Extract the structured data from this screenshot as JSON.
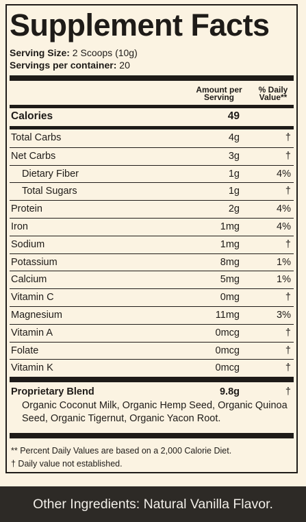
{
  "title": "Supplement Facts",
  "serving": {
    "size_label": "Serving Size:",
    "size_value": " 2 Scoops (10g)",
    "per_label": "Servings per container:",
    "per_value": " 20"
  },
  "headers": {
    "amount_line1": "Amount per",
    "amount_line2": "Serving",
    "dv_line1": "% Daily",
    "dv_line2": "Value**"
  },
  "calories": {
    "name": "Calories",
    "amount": "49"
  },
  "nutrients": [
    {
      "name": "Total Carbs",
      "amount": "4g",
      "dv": "†"
    },
    {
      "name": "Net Carbs",
      "amount": "3g",
      "dv": "†"
    },
    {
      "name": "Dietary Fiber",
      "amount": "1g",
      "dv": "4%"
    },
    {
      "name": "Total Sugars",
      "amount": "1g",
      "dv": "†"
    },
    {
      "name": "Protein",
      "amount": "2g",
      "dv": "4%"
    },
    {
      "name": "Iron",
      "amount": "1mg",
      "dv": "4%"
    },
    {
      "name": "Sodium",
      "amount": "1mg",
      "dv": "†"
    },
    {
      "name": "Potassium",
      "amount": "8mg",
      "dv": "1%"
    },
    {
      "name": "Calcium",
      "amount": "5mg",
      "dv": "1%"
    },
    {
      "name": "Vitamin C",
      "amount": "0mg",
      "dv": "†"
    },
    {
      "name": "Magnesium",
      "amount": "11mg",
      "dv": "3%"
    },
    {
      "name": "Vitamin A",
      "amount": "0mcg",
      "dv": "†"
    },
    {
      "name": "Folate",
      "amount": "0mcg",
      "dv": "†"
    },
    {
      "name": "Vitamin K",
      "amount": "0mcg",
      "dv": "†"
    }
  ],
  "blend": {
    "name": "Proprietary Blend",
    "amount": "9.8g",
    "dv": "†",
    "ingredients": "Organic Coconut Milk, Organic Hemp Seed, Organic Quinoa Seed, Organic Tigernut, Organic Yacon Root."
  },
  "footnotes": {
    "percent": "** Percent Daily Values are based on a 2,000 Calorie Diet.",
    "dagger": "† Daily value not established."
  },
  "other_ingredients": "Other Ingredients: Natural Vanilla Flavor.",
  "colors": {
    "panel": "#fbf3e2",
    "ink": "#1e1b18",
    "banner": "#2d2a26",
    "banner_text": "#f2efe9"
  }
}
